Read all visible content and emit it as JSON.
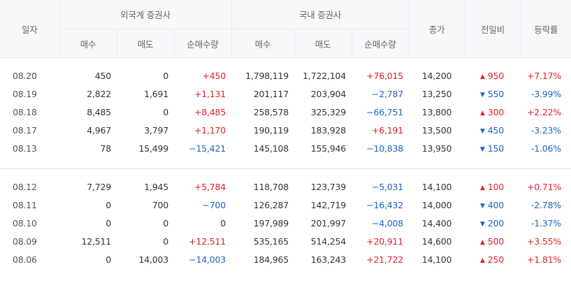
{
  "header": {
    "date": "일자",
    "foreign_group": "외국계 증권사",
    "domestic_group": "국내 증권사",
    "buy": "매수",
    "sell": "매도",
    "net": "순매수량",
    "close": "종가",
    "diff": "전일비",
    "rate": "등락률"
  },
  "icons": {
    "up": "triangle-up-icon",
    "down": "triangle-down-icon"
  },
  "colors": {
    "up": "#e0202d",
    "down": "#1f63c3",
    "header_bg": "#f7f8fa"
  },
  "groups": [
    {
      "rows": [
        {
          "date": "08.20",
          "f_buy": "450",
          "f_sell": "0",
          "f_net": "+450",
          "f_dir": "up",
          "d_buy": "1,798,119",
          "d_sell": "1,722,104",
          "d_net": "+76,015",
          "d_dir": "up",
          "close": "14,200",
          "diff": "950",
          "diff_dir": "up",
          "diff_glyph": "▲",
          "rate": "+7.17%"
        },
        {
          "date": "08.19",
          "f_buy": "2,822",
          "f_sell": "1,691",
          "f_net": "+1,131",
          "f_dir": "up",
          "d_buy": "201,117",
          "d_sell": "203,904",
          "d_net": "−2,787",
          "d_dir": "down",
          "close": "13,250",
          "diff": "550",
          "diff_dir": "down",
          "diff_glyph": "▼",
          "rate": "-3.99%"
        },
        {
          "date": "08.18",
          "f_buy": "8,485",
          "f_sell": "0",
          "f_net": "+8,485",
          "f_dir": "up",
          "d_buy": "258,578",
          "d_sell": "325,329",
          "d_net": "−66,751",
          "d_dir": "down",
          "close": "13,800",
          "diff": "300",
          "diff_dir": "up",
          "diff_glyph": "▲",
          "rate": "+2.22%"
        },
        {
          "date": "08.17",
          "f_buy": "4,967",
          "f_sell": "3,797",
          "f_net": "+1,170",
          "f_dir": "up",
          "d_buy": "190,119",
          "d_sell": "183,928",
          "d_net": "+6,191",
          "d_dir": "up",
          "close": "13,500",
          "diff": "450",
          "diff_dir": "down",
          "diff_glyph": "▼",
          "rate": "-3.23%"
        },
        {
          "date": "08.13",
          "f_buy": "78",
          "f_sell": "15,499",
          "f_net": "−15,421",
          "f_dir": "down",
          "d_buy": "145,108",
          "d_sell": "155,946",
          "d_net": "−10,838",
          "d_dir": "down",
          "close": "13,950",
          "diff": "150",
          "diff_dir": "down",
          "diff_glyph": "▼",
          "rate": "-1.06%"
        }
      ]
    },
    {
      "rows": [
        {
          "date": "08.12",
          "f_buy": "7,729",
          "f_sell": "1,945",
          "f_net": "+5,784",
          "f_dir": "up",
          "d_buy": "118,708",
          "d_sell": "123,739",
          "d_net": "−5,031",
          "d_dir": "down",
          "close": "14,100",
          "diff": "100",
          "diff_dir": "up",
          "diff_glyph": "▲",
          "rate": "+0.71%"
        },
        {
          "date": "08.11",
          "f_buy": "0",
          "f_sell": "700",
          "f_net": "−700",
          "f_dir": "down",
          "d_buy": "126,287",
          "d_sell": "142,719",
          "d_net": "−16,432",
          "d_dir": "down",
          "close": "14,000",
          "diff": "400",
          "diff_dir": "down",
          "diff_glyph": "▼",
          "rate": "-2.78%"
        },
        {
          "date": "08.10",
          "f_buy": "0",
          "f_sell": "0",
          "f_net": "0",
          "f_dir": "flat",
          "d_buy": "197,989",
          "d_sell": "201,997",
          "d_net": "−4,008",
          "d_dir": "down",
          "close": "14,400",
          "diff": "200",
          "diff_dir": "down",
          "diff_glyph": "▼",
          "rate": "-1.37%"
        },
        {
          "date": "08.09",
          "f_buy": "12,511",
          "f_sell": "0",
          "f_net": "+12,511",
          "f_dir": "up",
          "d_buy": "535,165",
          "d_sell": "514,254",
          "d_net": "+20,911",
          "d_dir": "up",
          "close": "14,600",
          "diff": "500",
          "diff_dir": "up",
          "diff_glyph": "▲",
          "rate": "+3.55%"
        },
        {
          "date": "08.06",
          "f_buy": "0",
          "f_sell": "14,003",
          "f_net": "−14,003",
          "f_dir": "down",
          "d_buy": "184,965",
          "d_sell": "163,243",
          "d_net": "+21,722",
          "d_dir": "up",
          "close": "14,100",
          "diff": "250",
          "diff_dir": "up",
          "diff_glyph": "▲",
          "rate": "+1.81%"
        }
      ]
    }
  ]
}
